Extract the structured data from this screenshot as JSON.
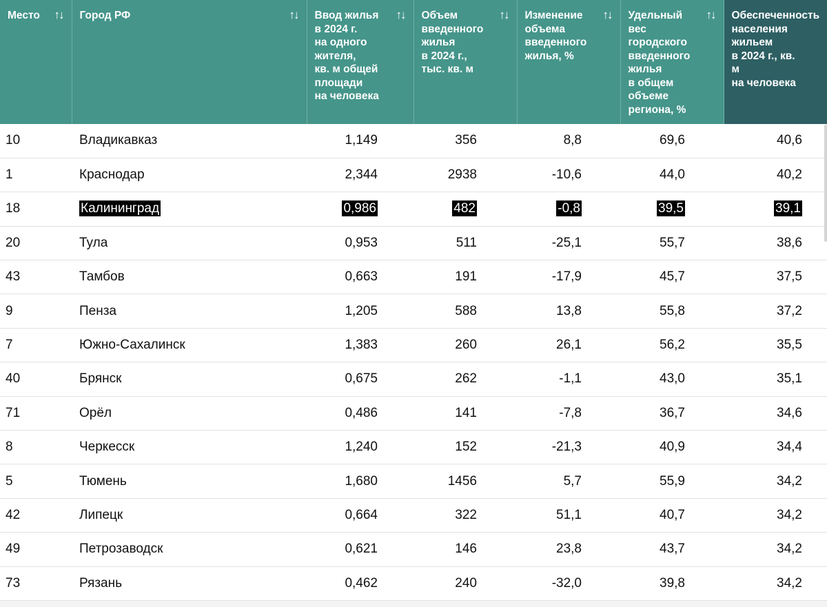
{
  "table": {
    "headers": [
      {
        "label": "Место"
      },
      {
        "label": "Город РФ"
      },
      {
        "label": "Ввод жилья\nв 2024 г.\nна одного\nжителя,\nкв. м общей\nплощади\nна человека"
      },
      {
        "label": "Объем\nвведенного\nжилья\nв 2024 г.,\nтыс. кв. м"
      },
      {
        "label": "Изменение\nобъема\nвведенного\nжилья, %"
      },
      {
        "label": "Удельный\nвес\nгородского\nвведенного\nжилья\nв общем\nобъеме\nрегиона, %"
      },
      {
        "label": "Обеспеченность\nнаселения\nжильем\nв 2024 г., кв. м\nна человека"
      }
    ],
    "sort_glyph": "↑↓",
    "rows": [
      {
        "rank": "10",
        "city": "Владикавказ",
        "per_capita": "1,149",
        "volume": "356",
        "change": "8,8",
        "share": "69,6",
        "provision": "40,6"
      },
      {
        "rank": "1",
        "city": "Краснодар",
        "per_capita": "2,344",
        "volume": "2938",
        "change": "-10,6",
        "share": "44,0",
        "provision": "40,2"
      },
      {
        "rank": "18",
        "city": "Калининград",
        "per_capita": "0,986",
        "volume": "482",
        "change": "-0,8",
        "share": "39,5",
        "provision": "39,1",
        "highlight": true
      },
      {
        "rank": "20",
        "city": "Тула",
        "per_capita": "0,953",
        "volume": "511",
        "change": "-25,1",
        "share": "55,7",
        "provision": "38,6"
      },
      {
        "rank": "43",
        "city": "Тамбов",
        "per_capita": "0,663",
        "volume": "191",
        "change": "-17,9",
        "share": "45,7",
        "provision": "37,5"
      },
      {
        "rank": "9",
        "city": "Пенза",
        "per_capita": "1,205",
        "volume": "588",
        "change": "13,8",
        "share": "55,8",
        "provision": "37,2"
      },
      {
        "rank": "7",
        "city": "Южно-Сахалинск",
        "per_capita": "1,383",
        "volume": "260",
        "change": "26,1",
        "share": "56,2",
        "provision": "35,5"
      },
      {
        "rank": "40",
        "city": "Брянск",
        "per_capita": "0,675",
        "volume": "262",
        "change": "-1,1",
        "share": "43,0",
        "provision": "35,1"
      },
      {
        "rank": "71",
        "city": "Орёл",
        "per_capita": "0,486",
        "volume": "141",
        "change": "-7,8",
        "share": "36,7",
        "provision": "34,6"
      },
      {
        "rank": "8",
        "city": "Черкесск",
        "per_capita": "1,240",
        "volume": "152",
        "change": "-21,3",
        "share": "40,9",
        "provision": "34,4"
      },
      {
        "rank": "5",
        "city": "Тюмень",
        "per_capita": "1,680",
        "volume": "1456",
        "change": "5,7",
        "share": "55,9",
        "provision": "34,2"
      },
      {
        "rank": "42",
        "city": "Липецк",
        "per_capita": "0,664",
        "volume": "322",
        "change": "51,1",
        "share": "40,7",
        "provision": "34,2"
      },
      {
        "rank": "49",
        "city": "Петрозаводск",
        "per_capita": "0,621",
        "volume": "146",
        "change": "23,8",
        "share": "43,7",
        "provision": "34,2"
      },
      {
        "rank": "73",
        "city": "Рязань",
        "per_capita": "0,462",
        "volume": "240",
        "change": "-32,0",
        "share": "39,8",
        "provision": "34,2"
      }
    ]
  },
  "colors": {
    "header_bg": "#45958a",
    "header_sorted_bg": "#2d5f63",
    "highlight_bg": "#000000"
  }
}
